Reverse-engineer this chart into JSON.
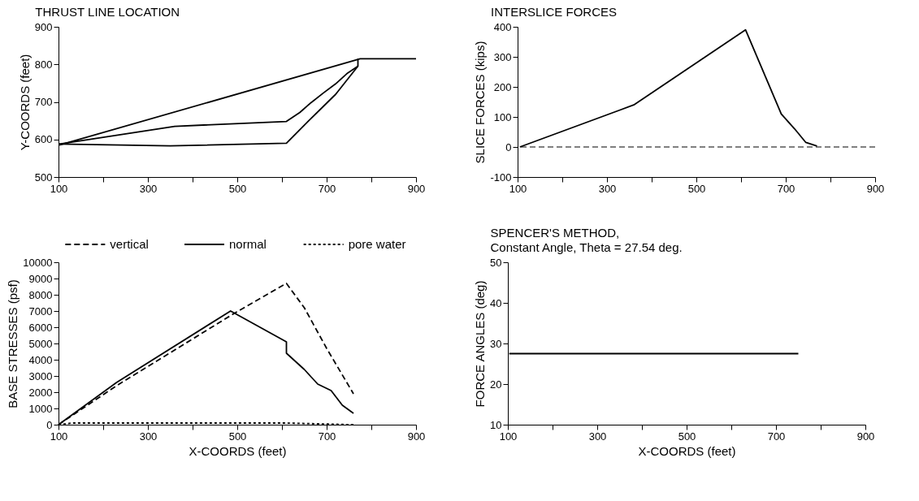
{
  "chart_data": [
    {
      "type": "line",
      "title": "THRUST LINE LOCATION",
      "ylabel": "Y-COORDS  (feet)",
      "xlim": [
        100,
        900
      ],
      "ylim": [
        500,
        900
      ],
      "xticks": [
        100,
        {
          "value": 200,
          "label": null
        },
        300,
        {
          "value": 400,
          "label": null
        },
        500,
        {
          "value": 600,
          "label": null
        },
        700,
        {
          "value": 800,
          "label": null
        },
        900
      ],
      "yticks": [
        500,
        600,
        700,
        800,
        900
      ],
      "grid": false,
      "legend": false,
      "line_style": "solid",
      "series": [
        {
          "color": "#000000",
          "x": [
            102,
            775,
            900
          ],
          "values": [
            585,
            815,
            815
          ]
        },
        {
          "color": "#000000",
          "x": [
            102,
            350,
            610,
            660,
            720,
            770,
            770
          ],
          "values": [
            588,
            583,
            590,
            650,
            720,
            795,
            815
          ]
        },
        {
          "color": "#000000",
          "x": [
            102,
            360,
            610,
            640,
            665,
            693,
            720,
            747,
            770
          ],
          "values": [
            588,
            635,
            648,
            672,
            698,
            724,
            748,
            777,
            795
          ]
        }
      ]
    },
    {
      "type": "line",
      "title": "INTERSLICE FORCES",
      "ylabel": "SLICE FORCES (kips)",
      "xlim": [
        100,
        900
      ],
      "ylim": [
        -100,
        400
      ],
      "xticks": [
        100,
        {
          "value": 200,
          "label": null
        },
        300,
        {
          "value": 400,
          "label": null
        },
        500,
        {
          "value": 600,
          "label": null
        },
        700,
        {
          "value": 800,
          "label": null
        },
        900
      ],
      "yticks": [
        -100,
        0,
        100,
        200,
        300,
        400
      ],
      "grid": false,
      "legend": false,
      "line_style": "solid",
      "ref_lines": [
        {
          "axis": "y",
          "value": 0,
          "line_style": "dashed",
          "color": "#000000"
        }
      ],
      "series": [
        {
          "color": "#000000",
          "x": [
            105,
            360,
            610,
            690,
            720,
            745,
            770
          ],
          "values": [
            0,
            140,
            390,
            110,
            60,
            15,
            3
          ]
        }
      ]
    },
    {
      "type": "line",
      "ylabel": "BASE STRESSES (psf)",
      "xlabel": "X-COORDS  (feet)",
      "xlim": [
        100,
        900
      ],
      "ylim": [
        0,
        10000
      ],
      "xticks": [
        100,
        {
          "value": 200,
          "label": null
        },
        300,
        {
          "value": 400,
          "label": null
        },
        500,
        {
          "value": 600,
          "label": null
        },
        700,
        {
          "value": 800,
          "label": null
        },
        900
      ],
      "yticks": [
        0,
        1000,
        2000,
        3000,
        4000,
        5000,
        6000,
        7000,
        8000,
        9000,
        10000
      ],
      "grid": false,
      "legend": "top",
      "series": [
        {
          "name": "vertical",
          "color": "#000000",
          "line_style": "dashed",
          "x": [
            100,
            230,
            490,
            610,
            650,
            700,
            760
          ],
          "values": [
            0,
            2400,
            6800,
            8700,
            7200,
            4700,
            1900
          ]
        },
        {
          "name": "normal",
          "color": "#000000",
          "line_style": "solid",
          "x": [
            100,
            230,
            485,
            610,
            610,
            650,
            680,
            710,
            735,
            760
          ],
          "values": [
            0,
            2600,
            7000,
            5100,
            4400,
            3400,
            2500,
            2100,
            1200,
            700
          ]
        },
        {
          "name": "pore water",
          "color": "#000000",
          "line_style": "dotted",
          "x": [
            100,
            130,
            610,
            760
          ],
          "values": [
            0,
            100,
            100,
            0
          ]
        }
      ]
    },
    {
      "type": "line",
      "title": "SPENCER'S METHOD,",
      "subtitle": "Constant Angle, Theta = 27.54 deg.",
      "ylabel": "FORCE ANGLES  (deg)",
      "xlabel": "X-COORDS  (feet)",
      "xlim": [
        100,
        900
      ],
      "ylim": [
        10,
        50
      ],
      "xticks": [
        100,
        {
          "value": 200,
          "label": null
        },
        300,
        {
          "value": 400,
          "label": null
        },
        500,
        {
          "value": 600,
          "label": null
        },
        700,
        {
          "value": 800,
          "label": null
        },
        900
      ],
      "yticks": [
        10,
        20,
        30,
        40,
        50
      ],
      "grid": false,
      "legend": false,
      "line_style": "solid",
      "series": [
        {
          "color": "#000000",
          "x": [
            103,
            750
          ],
          "values": [
            27.5,
            27.5
          ]
        }
      ]
    }
  ]
}
